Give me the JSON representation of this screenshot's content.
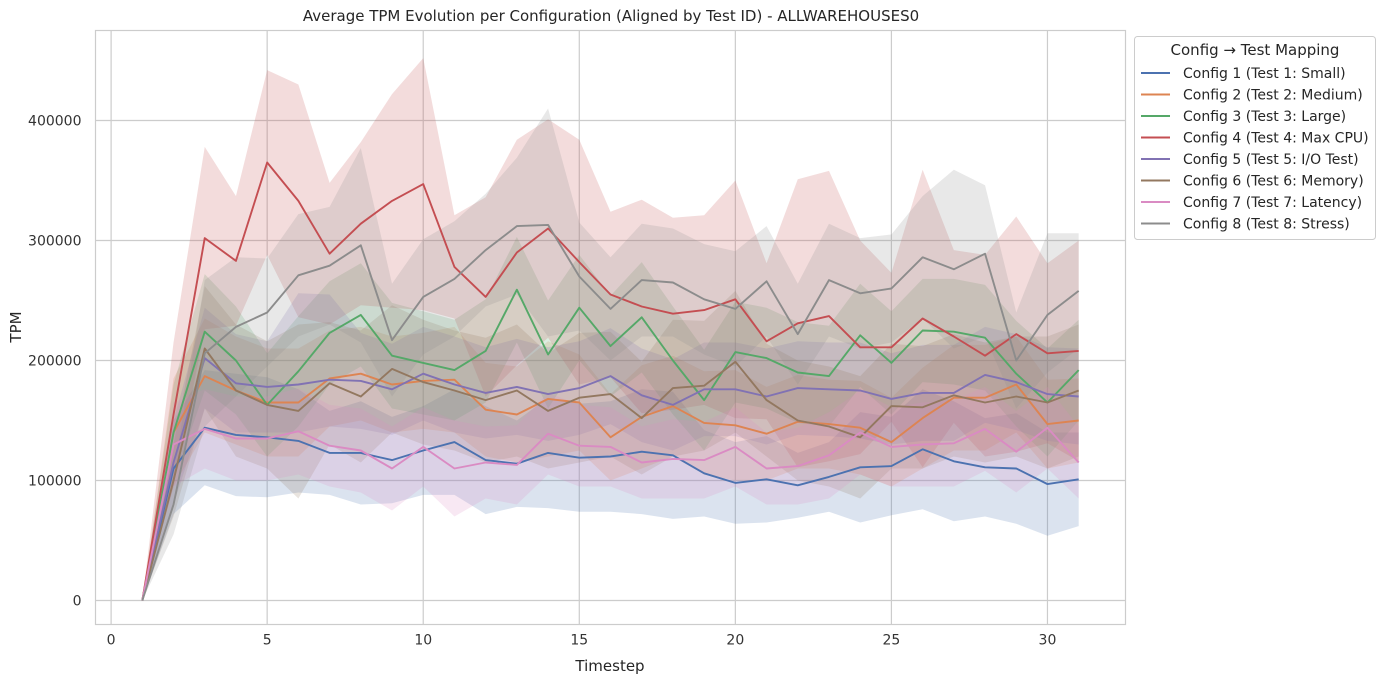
{
  "chart_data": {
    "type": "line",
    "title": "Average TPM Evolution per Configuration (Aligned by Test ID) - ALLWAREHOUSES0",
    "xlabel": "Timestep",
    "ylabel": "TPM",
    "xlim": [
      -0.5,
      32.5
    ],
    "ylim": [
      -20000,
      475000
    ],
    "xticks": [
      0,
      5,
      10,
      15,
      20,
      25,
      30
    ],
    "xtick_labels": [
      "0",
      "5",
      "10",
      "15",
      "20",
      "25",
      "30"
    ],
    "yticks": [
      0,
      100000,
      200000,
      300000,
      400000
    ],
    "ytick_labels": [
      "0",
      "100000",
      "200000",
      "300000",
      "400000"
    ],
    "grid": true,
    "legend_title": "Config → Test Mapping",
    "legend_position": "outside-top-right",
    "x": [
      1,
      2,
      3,
      4,
      5,
      6,
      7,
      8,
      9,
      10,
      11,
      12,
      13,
      14,
      15,
      16,
      17,
      18,
      19,
      20,
      21,
      22,
      23,
      24,
      25,
      26,
      27,
      28,
      29,
      30,
      31
    ],
    "series": [
      {
        "name": "Config 1 (Test 1: Small)",
        "color": "#4c72b0",
        "values": [
          0,
          110000,
          144000,
          138000,
          136000,
          133000,
          123000,
          123000,
          117000,
          125000,
          132000,
          117000,
          114000,
          123000,
          119000,
          120000,
          124000,
          121000,
          106000,
          98000,
          101000,
          96000,
          103000,
          111000,
          112000,
          126000,
          116000,
          111000,
          110000,
          97000,
          101000
        ],
        "lower": [
          0,
          72000,
          96000,
          87000,
          86000,
          90000,
          88000,
          80000,
          81000,
          88000,
          88000,
          72000,
          78000,
          77000,
          74000,
          74000,
          72000,
          68000,
          70000,
          64000,
          65000,
          69000,
          74000,
          65000,
          71000,
          76000,
          66000,
          70000,
          64000,
          54000,
          62000
        ],
        "upper": [
          0,
          150000,
          192000,
          189000,
          186000,
          176000,
          158000,
          166000,
          153000,
          162000,
          176000,
          162000,
          150000,
          169000,
          164000,
          166000,
          176000,
          174000,
          142000,
          132000,
          137000,
          123000,
          132000,
          157000,
          153000,
          176000,
          166000,
          152000,
          156000,
          140000,
          140000
        ]
      },
      {
        "name": "Config 2 (Test 2: Medium)",
        "color": "#dd8452",
        "values": [
          0,
          140000,
          187000,
          175000,
          165000,
          165000,
          185000,
          189000,
          180000,
          183000,
          184000,
          159000,
          155000,
          168000,
          165000,
          136000,
          153000,
          162000,
          148000,
          146000,
          139000,
          149000,
          147000,
          144000,
          132000,
          152000,
          169000,
          169000,
          180000,
          147000,
          150000
        ],
        "lower": [
          0,
          95000,
          140000,
          130000,
          120000,
          120000,
          145000,
          150000,
          140000,
          143000,
          140000,
          120000,
          115000,
          120000,
          125000,
          100000,
          110000,
          120000,
          105000,
          100000,
          100000,
          110000,
          110000,
          105000,
          95000,
          110000,
          125000,
          125000,
          140000,
          110000,
          115000
        ],
        "upper": [
          0,
          185000,
          235000,
          220000,
          210000,
          210000,
          225000,
          228000,
          220000,
          223000,
          228000,
          198000,
          195000,
          216000,
          205000,
          172000,
          196000,
          204000,
          191000,
          192000,
          178000,
          188000,
          184000,
          183000,
          169000,
          194000,
          213000,
          213000,
          220000,
          184000,
          185000
        ]
      },
      {
        "name": "Config 3 (Test 3: Large)",
        "color": "#55a868",
        "values": [
          0,
          140000,
          224000,
          200000,
          163000,
          191000,
          223000,
          238000,
          204000,
          198000,
          192000,
          208000,
          259000,
          205000,
          244000,
          212000,
          236000,
          200000,
          167000,
          207000,
          202000,
          190000,
          187000,
          221000,
          198000,
          225000,
          224000,
          219000,
          189000,
          165000,
          192000
        ],
        "lower": [
          0,
          100000,
          175000,
          155000,
          120000,
          145000,
          180000,
          195000,
          160000,
          155000,
          150000,
          165000,
          215000,
          160000,
          200000,
          170000,
          190000,
          155000,
          125000,
          165000,
          160000,
          148000,
          145000,
          178000,
          155000,
          182000,
          180000,
          175000,
          145000,
          120000,
          150000
        ],
        "upper": [
          0,
          180000,
          272000,
          245000,
          206000,
          237000,
          266000,
          281000,
          248000,
          241000,
          234000,
          251000,
          303000,
          250000,
          288000,
          254000,
          282000,
          245000,
          209000,
          249000,
          244000,
          232000,
          229000,
          264000,
          241000,
          268000,
          268000,
          263000,
          233000,
          210000,
          234000
        ]
      },
      {
        "name": "Config 4 (Test 4: Max CPU)",
        "color": "#c44e52",
        "values": [
          0,
          155000,
          302000,
          283000,
          365000,
          333000,
          289000,
          314000,
          333000,
          347000,
          278000,
          253000,
          290000,
          310000,
          282000,
          255000,
          245000,
          239000,
          242000,
          251000,
          216000,
          231000,
          237000,
          211000,
          211000,
          235000,
          220000,
          204000,
          222000,
          206000,
          208000
        ],
        "lower": [
          0,
          95000,
          226000,
          229000,
          288000,
          236000,
          230000,
          246000,
          244000,
          242000,
          235000,
          170000,
          196000,
          219000,
          180000,
          186000,
          156000,
          159000,
          163000,
          152000,
          151000,
          111000,
          116000,
          122000,
          149000,
          111000,
          148000,
          120000,
          124000,
          131000,
          116000
        ],
        "upper": [
          0,
          215000,
          378000,
          337000,
          442000,
          430000,
          348000,
          382000,
          422000,
          452000,
          321000,
          336000,
          384000,
          401000,
          384000,
          324000,
          334000,
          319000,
          321000,
          350000,
          281000,
          351000,
          358000,
          300000,
          273000,
          359000,
          292000,
          288000,
          320000,
          281000,
          300000
        ]
      },
      {
        "name": "Config 5 (Test 5: I/O Test)",
        "color": "#8172b3",
        "values": [
          0,
          115000,
          202000,
          181000,
          178000,
          180000,
          184000,
          183000,
          176000,
          189000,
          180000,
          173000,
          178000,
          172000,
          177000,
          187000,
          171000,
          163000,
          176000,
          176000,
          170000,
          177000,
          176000,
          175000,
          168000,
          173000,
          173000,
          188000,
          182000,
          172000,
          170000
        ],
        "lower": [
          0,
          80000,
          160000,
          140000,
          140000,
          140000,
          145000,
          143000,
          138000,
          150000,
          140000,
          135000,
          138000,
          133000,
          138000,
          147000,
          132000,
          125000,
          137000,
          137000,
          130000,
          138000,
          137000,
          135000,
          130000,
          133000,
          133000,
          148000,
          142000,
          133000,
          130000
        ],
        "upper": [
          0,
          150000,
          244000,
          222000,
          216000,
          256000,
          255000,
          223000,
          214000,
          228000,
          220000,
          211000,
          218000,
          211000,
          216000,
          227000,
          210000,
          201000,
          215000,
          215000,
          210000,
          216000,
          215000,
          215000,
          206000,
          213000,
          213000,
          228000,
          222000,
          211000,
          210000
        ]
      },
      {
        "name": "Config 6 (Test 6: Memory)",
        "color": "#937860",
        "values": [
          0,
          100000,
          210000,
          175000,
          163000,
          158000,
          181000,
          170000,
          193000,
          182000,
          175000,
          167000,
          175000,
          158000,
          169000,
          172000,
          152000,
          177000,
          179000,
          199000,
          167000,
          150000,
          145000,
          136000,
          162000,
          161000,
          171000,
          165000,
          170000,
          165000,
          175000
        ],
        "lower": [
          0,
          70000,
          160000,
          120000,
          110000,
          85000,
          130000,
          115000,
          140000,
          130000,
          125000,
          115000,
          120000,
          110000,
          115000,
          120000,
          105000,
          120000,
          125000,
          140000,
          120000,
          100000,
          95000,
          85000,
          110000,
          110000,
          120000,
          115000,
          120000,
          110000,
          120000
        ],
        "upper": [
          0,
          130000,
          262000,
          230000,
          216000,
          230000,
          232000,
          225000,
          246000,
          234000,
          225000,
          219000,
          230000,
          206000,
          223000,
          224000,
          199000,
          234000,
          233000,
          258000,
          214000,
          200000,
          195000,
          187000,
          214000,
          212000,
          222000,
          215000,
          220000,
          220000,
          230000
        ]
      },
      {
        "name": "Config 7 (Test 7: Latency)",
        "color": "#da8bc3",
        "values": [
          0,
          130000,
          143000,
          135000,
          135000,
          141000,
          129000,
          125000,
          110000,
          128000,
          110000,
          115000,
          113000,
          139000,
          129000,
          128000,
          115000,
          118000,
          117000,
          128000,
          110000,
          112000,
          121000,
          140000,
          128000,
          130000,
          131000,
          143000,
          124000,
          144000,
          115000
        ],
        "lower": [
          0,
          95000,
          110000,
          100000,
          100000,
          105000,
          95000,
          90000,
          75000,
          95000,
          70000,
          85000,
          80000,
          105000,
          95000,
          95000,
          85000,
          85000,
          85000,
          95000,
          80000,
          80000,
          85000,
          105000,
          95000,
          95000,
          95000,
          108000,
          90000,
          110000,
          85000
        ],
        "upper": [
          0,
          165000,
          176000,
          170000,
          170000,
          177000,
          163000,
          160000,
          145000,
          161000,
          150000,
          145000,
          146000,
          173000,
          163000,
          161000,
          145000,
          151000,
          149000,
          161000,
          140000,
          144000,
          157000,
          175000,
          161000,
          165000,
          167000,
          178000,
          158000,
          178000,
          145000
        ]
      },
      {
        "name": "Config 8 (Test 8: Stress)",
        "color": "#8c8c8c",
        "values": [
          0,
          80000,
          206000,
          228000,
          240000,
          271000,
          279000,
          296000,
          217000,
          253000,
          268000,
          292000,
          312000,
          313000,
          270000,
          243000,
          267000,
          265000,
          251000,
          243000,
          266000,
          222000,
          267000,
          256000,
          260000,
          286000,
          276000,
          289000,
          200000,
          238000,
          258000
        ],
        "lower": [
          0,
          55000,
          145000,
          170000,
          195000,
          220000,
          230000,
          215000,
          170000,
          205000,
          220000,
          245000,
          255000,
          220000,
          225000,
          200000,
          220000,
          220000,
          205000,
          195000,
          220000,
          180000,
          220000,
          210000,
          215000,
          235000,
          210000,
          220000,
          160000,
          190000,
          210000
        ],
        "upper": [
          0,
          105000,
          267000,
          286000,
          285000,
          322000,
          328000,
          377000,
          264000,
          301000,
          316000,
          339000,
          369000,
          410000,
          315000,
          286000,
          314000,
          310000,
          297000,
          291000,
          312000,
          264000,
          314000,
          302000,
          305000,
          337000,
          359000,
          346000,
          240000,
          306000,
          306000
        ]
      }
    ]
  }
}
